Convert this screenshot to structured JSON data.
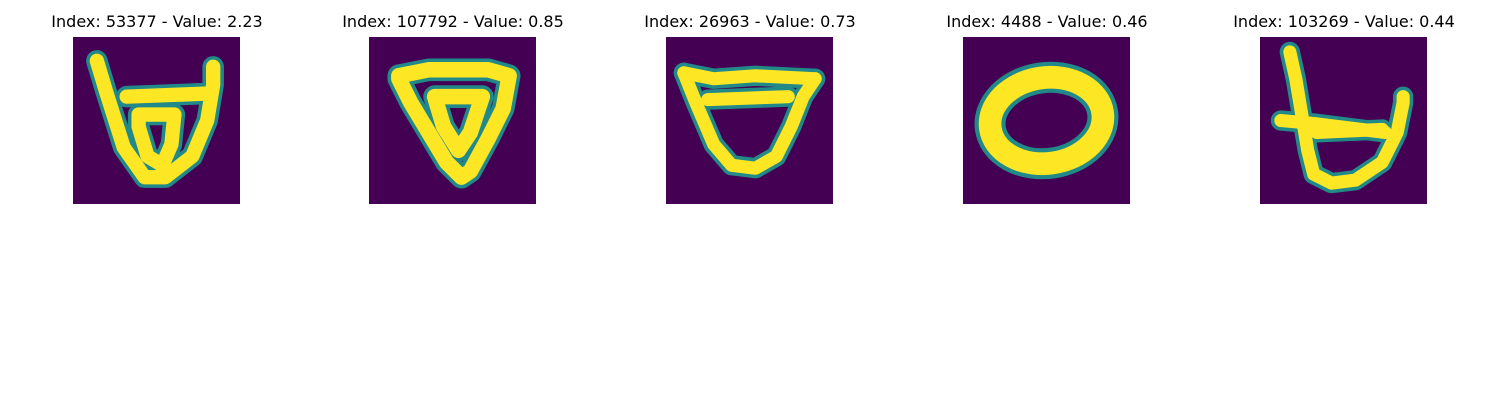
{
  "colors": {
    "background_dark": "#440154",
    "stroke_mid": "#21918c",
    "stroke_bright": "#fde725"
  },
  "panels": [
    {
      "title": "Index: 53377 - Value: 2.23",
      "image_icon": "handwritten-glyph-b-like"
    },
    {
      "title": "Index: 107792 - Value: 0.85",
      "image_icon": "handwritten-glyph-triangle"
    },
    {
      "title": "Index: 26963 - Value: 0.73",
      "image_icon": "handwritten-glyph-cup"
    },
    {
      "title": "Index: 4488 - Value: 0.46",
      "image_icon": "handwritten-glyph-oval"
    },
    {
      "title": "Index: 103269 - Value: 0.44",
      "image_icon": "handwritten-glyph-b-like-variant"
    }
  ]
}
